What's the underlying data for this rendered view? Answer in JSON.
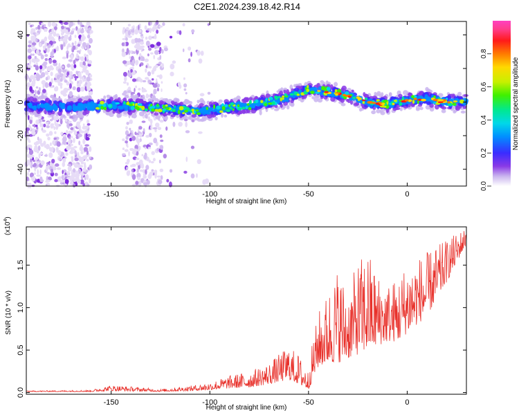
{
  "title": "C2E1.2024.239.18.42.R14",
  "chart_data": [
    {
      "type": "heatmap",
      "xlabel": "Height of straight line (km)",
      "ylabel": "Frequency (Hz)",
      "xlim": [
        -193,
        30
      ],
      "ylim": [
        -50,
        48
      ],
      "xticks": [
        -150,
        -100,
        -50,
        0
      ],
      "yticks": [
        -40,
        -20,
        0,
        20,
        40
      ],
      "grid": false,
      "colorbar": {
        "label": "Normalized spectral amplitude",
        "range": [
          0,
          1
        ],
        "ticks": [
          "0.0",
          "0.2",
          "0.4",
          "0.6",
          "0.8"
        ],
        "colors": [
          "#ffffff",
          "#c9b4ee",
          "#8a3ae6",
          "#3a2cff",
          "#0090ff",
          "#00d8e8",
          "#00e890",
          "#40f000",
          "#c8f000",
          "#ffd800",
          "#ff7a00",
          "#ff1a1a",
          "#ff3d8c",
          "#ff40c0"
        ]
      },
      "ridge": {
        "x": [
          -193,
          -170,
          -150,
          -130,
          -110,
          -100,
          -90,
          -80,
          -70,
          -60,
          -50,
          -40,
          -30,
          -20,
          -10,
          0,
          10,
          20,
          30
        ],
        "y": [
          -2,
          -3,
          -2,
          -3,
          -5,
          -5,
          -3,
          -2,
          0,
          3,
          8,
          6,
          4,
          0,
          -1,
          1,
          2,
          0,
          0
        ]
      }
    },
    {
      "type": "line",
      "xlabel": "Height of straight line (km)",
      "ylabel": "SNR (10 * v/v)",
      "scale_label": "(x10",
      "scale_exponent": "4",
      "xlim": [
        -193,
        30
      ],
      "ylim": [
        -0.02,
        1.95
      ],
      "xticks": [
        -150,
        -100,
        -50,
        0
      ],
      "yticks": [
        "0.0",
        "0.5",
        "1.0",
        "1.5"
      ],
      "series_color": "#e8302a",
      "envelope": {
        "x": [
          -193,
          -160,
          -150,
          -125,
          -110,
          -100,
          -90,
          -80,
          -70,
          -60,
          -55,
          -50,
          -48,
          -45,
          -40,
          -35,
          -30,
          -25,
          -20,
          -15,
          -10,
          -5,
          0,
          10,
          20,
          30
        ],
        "low": [
          0.01,
          0.01,
          0.02,
          0.01,
          0.02,
          0.03,
          0.05,
          0.06,
          0.1,
          0.15,
          0.1,
          0.03,
          0.15,
          0.3,
          0.35,
          0.35,
          0.4,
          0.45,
          0.5,
          0.55,
          0.6,
          0.6,
          0.7,
          0.9,
          1.3,
          1.75
        ],
        "high": [
          0.02,
          0.03,
          0.09,
          0.04,
          0.08,
          0.12,
          0.2,
          0.25,
          0.35,
          0.55,
          0.45,
          0.25,
          0.6,
          0.95,
          1.2,
          1.5,
          1.2,
          1.55,
          1.7,
          1.4,
          1.3,
          1.35,
          1.55,
          1.65,
          1.8,
          1.95
        ]
      }
    }
  ]
}
